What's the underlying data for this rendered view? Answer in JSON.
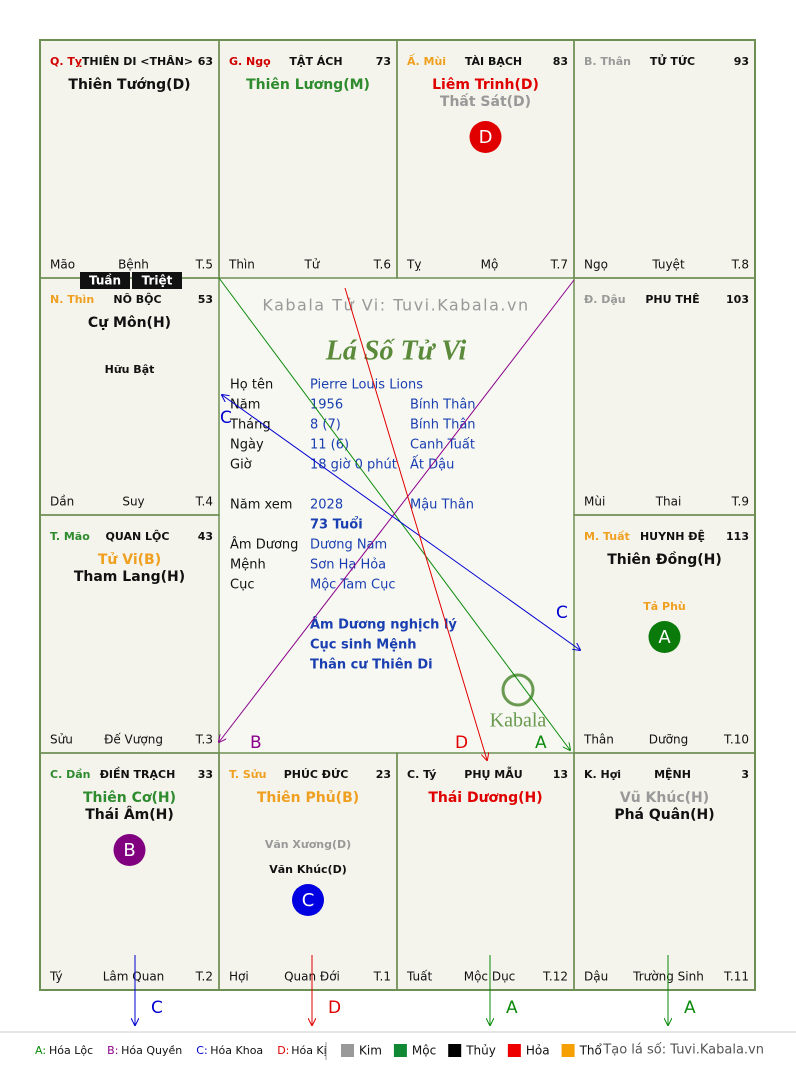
{
  "header": "Kabala Tử Vi: Tuvi.Kabala.vn",
  "title": "Lá Số Tử Vi",
  "logo": "Kabala",
  "palaces": [
    {
      "can": "Q. Tỵ",
      "can_color": "#d00000",
      "name": "THIÊN DI <THÂN>",
      "age": 63,
      "stars": [
        {
          "text": "Thiên Tướng(D)",
          "color": "#111111"
        }
      ],
      "minor": [],
      "branch": "Mão",
      "stage": "Bệnh",
      "term": "T.5"
    },
    {
      "can": "G. Ngọ",
      "can_color": "#d00000",
      "name": "TẬT ÁCH",
      "age": 73,
      "stars": [
        {
          "text": "Thiên Lương(M)",
          "color": "#2e8b2e"
        }
      ],
      "minor": [],
      "branch": "Thìn",
      "stage": "Tử",
      "term": "T.6"
    },
    {
      "can": "Ấ. Mùi",
      "can_color": "#f0a020",
      "name": "TÀI BẠCH",
      "age": 83,
      "stars": [
        {
          "text": "Liêm Trinh(D)",
          "color": "#e00000"
        },
        {
          "text": "Thất Sát(D)",
          "color": "#999999"
        }
      ],
      "minor": [],
      "mutation": {
        "letter": "D",
        "color": "#e00000"
      },
      "branch": "Tỵ",
      "stage": "Mộ",
      "term": "T.7"
    },
    {
      "can": "B. Thân",
      "can_color": "#999999",
      "name": "TỬ TỨC",
      "age": 93,
      "stars": [],
      "minor": [],
      "branch": "Ngọ",
      "stage": "Tuyệt",
      "term": "T.8"
    },
    {
      "can": "N. Thìn",
      "can_color": "#f0a020",
      "name": "NÔ BỘC",
      "age": 53,
      "stars": [
        {
          "text": "Cự Môn(H)",
          "color": "#111111"
        }
      ],
      "minor": [
        {
          "text": "Hữu Bật",
          "color": "#111111"
        }
      ],
      "branch": "Dần",
      "stage": "Suy",
      "term": "T.4"
    },
    {
      "can": "Đ. Dậu",
      "can_color": "#999999",
      "name": "PHU THÊ",
      "age": 103,
      "stars": [],
      "minor": [],
      "branch": "Mùi",
      "stage": "Thai",
      "term": "T.9"
    },
    {
      "can": "T. Mão",
      "can_color": "#2e8b2e",
      "name": "QUAN LỘC",
      "age": 43,
      "stars": [
        {
          "text": "Tử Vi(B)",
          "color": "#f0a020"
        },
        {
          "text": "Tham Lang(H)",
          "color": "#111111"
        }
      ],
      "minor": [],
      "branch": "Sửu",
      "stage": "Đế Vượng",
      "term": "T.3"
    },
    {
      "can": "M. Tuất",
      "can_color": "#f0a020",
      "name": "HUYNH ĐỆ",
      "age": 113,
      "stars": [
        {
          "text": "Thiên Đồng(H)",
          "color": "#111111"
        }
      ],
      "minor": [
        {
          "text": "Tả Phù",
          "color": "#f0a020"
        }
      ],
      "mutation": {
        "letter": "A",
        "color": "#0a7a0a"
      },
      "branch": "Thân",
      "stage": "Dưỡng",
      "term": "T.10"
    },
    {
      "can": "C. Dần",
      "can_color": "#2e8b2e",
      "name": "ĐIỀN TRẠCH",
      "age": 33,
      "stars": [
        {
          "text": "Thiên Cơ(H)",
          "color": "#2e8b2e"
        },
        {
          "text": "Thái Âm(H)",
          "color": "#111111"
        }
      ],
      "minor": [],
      "mutation": {
        "letter": "B",
        "color": "#800080"
      },
      "branch": "Tý",
      "stage": "Lâm Quan",
      "term": "T.2"
    },
    {
      "can": "T. Sửu",
      "can_color": "#f0a020",
      "name": "PHÚC ĐỨC",
      "age": 23,
      "stars": [
        {
          "text": "Thiên Phủ(B)",
          "color": "#f0a020"
        }
      ],
      "minor": [
        {
          "text": "Văn Xương(D)",
          "color": "#999999"
        },
        {
          "text": "Văn Khúc(D)",
          "color": "#111111"
        }
      ],
      "mutation": {
        "letter": "C",
        "color": "#0000e0"
      },
      "branch": "Hợi",
      "stage": "Quan Đới",
      "term": "T.1"
    },
    {
      "can": "C. Tý",
      "can_color": "#111111",
      "name": "PHỤ MẪU",
      "age": 13,
      "stars": [
        {
          "text": "Thái Dương(H)",
          "color": "#e00000"
        }
      ],
      "minor": [],
      "branch": "Tuất",
      "stage": "Mộc Dục",
      "term": "T.12"
    },
    {
      "can": "K. Hợi",
      "can_color": "#111111",
      "name": "MỆNH",
      "age": 3,
      "stars": [
        {
          "text": "Vũ Khúc(H)",
          "color": "#999999"
        },
        {
          "text": "Phá Quân(H)",
          "color": "#111111"
        }
      ],
      "minor": [],
      "branch": "Dậu",
      "stage": "Trường Sinh",
      "term": "T.11"
    }
  ],
  "tuan": "Tuần",
  "triet": "Triệt",
  "info": [
    [
      "Họ tên",
      "Pierre Louis Lions",
      ""
    ],
    [
      "Năm",
      "1956",
      "Bính Thân"
    ],
    [
      "Tháng",
      "8  (7)",
      "Bính Thân"
    ],
    [
      "Ngày",
      "11  (6)",
      "Canh Tuất"
    ],
    [
      "Giờ",
      "18 giờ 0 phút",
      "Ất Dậu"
    ],
    [
      "Năm xem",
      "2028",
      "Mậu Thân"
    ],
    [
      "",
      "73 Tuổi",
      ""
    ],
    [
      "Âm Dương",
      "Dương Nam",
      ""
    ],
    [
      "Mệnh",
      "Sơn Hạ Hỏa",
      ""
    ],
    [
      "Cục",
      "Mộc Tam Cục",
      ""
    ]
  ],
  "notes": [
    "Âm Dương nghịch lý",
    "Cục sinh Mệnh",
    "Thân cư Thiên Di"
  ],
  "aspects": [
    {
      "label": "A",
      "color": "#0a8a0a"
    },
    {
      "label": "B",
      "color": "#8a008a"
    },
    {
      "label": "C",
      "color": "#0000d0"
    },
    {
      "label": "D",
      "color": "#e00000"
    }
  ],
  "bottom_arrows": [
    {
      "label": "C",
      "color": "#0000d0"
    },
    {
      "label": "D",
      "color": "#e00000"
    },
    {
      "label": "A",
      "color": "#0a8a0a"
    },
    {
      "label": "A",
      "color": "#0a8a0a"
    }
  ],
  "legend": {
    "mutations": [
      {
        "key": "A:",
        "text": "Hóa Lộc",
        "color": "#0a8a0a"
      },
      {
        "key": "B:",
        "text": "Hóa Quyền",
        "color": "#8a008a"
      },
      {
        "key": "C:",
        "text": "Hóa Khoa",
        "color": "#0000d0"
      },
      {
        "key": "D:",
        "text": "Hóa Kị",
        "color": "#e00000"
      }
    ],
    "elements": [
      {
        "text": "Kim",
        "color": "#999999"
      },
      {
        "text": "Mộc",
        "color": "#118833"
      },
      {
        "text": "Thủy",
        "color": "#000000"
      },
      {
        "text": "Hỏa",
        "color": "#ee0000"
      },
      {
        "text": "Thổ",
        "color": "#f5a000"
      }
    ],
    "credit": "Tạo lá số: Tuvi.Kabala.vn"
  }
}
